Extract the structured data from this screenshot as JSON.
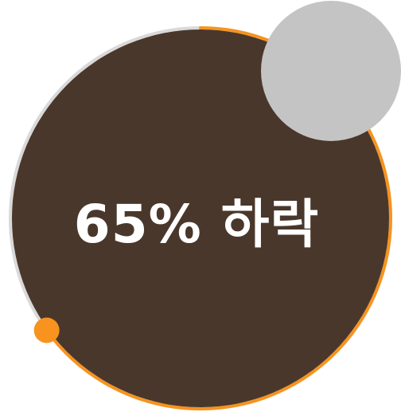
{
  "badge": {
    "text": "65% 하락",
    "percent": 65,
    "colors": {
      "disc": "#4a372b",
      "progress": "#f7931e",
      "track": "#d9d9d9",
      "corner_circle": "#c4c4c4",
      "text": "#ffffff"
    }
  }
}
